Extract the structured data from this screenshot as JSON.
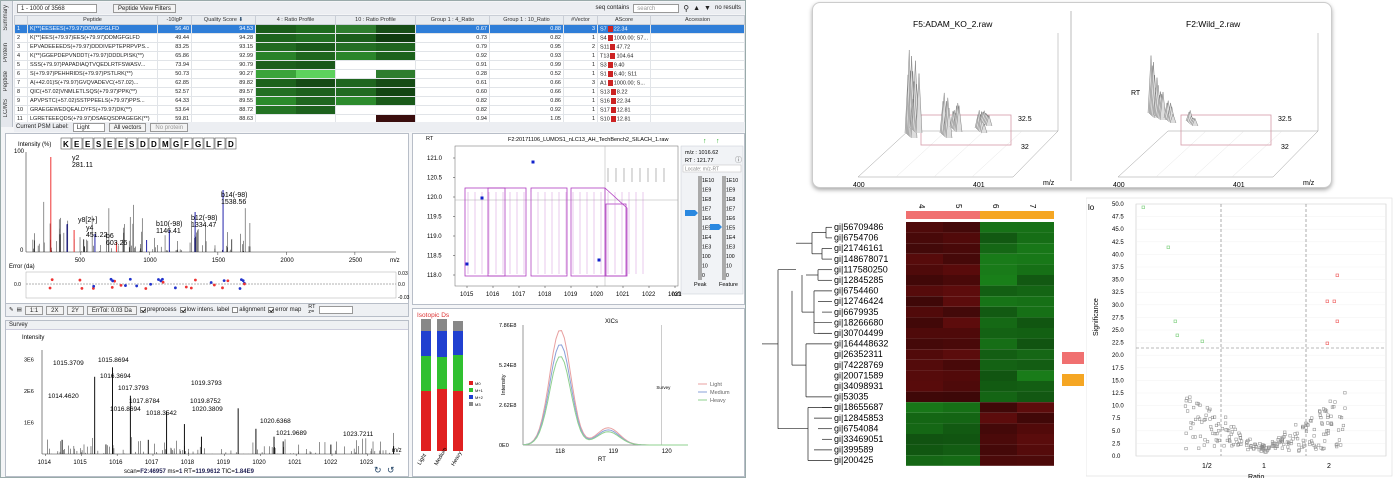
{
  "toolbar": {
    "range": "1 - 1000 of 3568",
    "view_filters": "Peptide View Filters",
    "seq_contains": "seq contains",
    "search_placeholder": "search",
    "no_results": "no results"
  },
  "side_tabs": [
    "Summary",
    "Protein",
    "Peptide",
    "LC/MS"
  ],
  "peptide_table": {
    "columns": [
      "",
      "Peptide",
      "-10lgP",
      "Quality Score",
      "4 : Ratio Profile",
      "10 : Ratio Profile",
      "Group 1 : 4_Ratio",
      "Group 1 : 10_Ratio",
      "#Vector",
      "AScore",
      "Accession"
    ],
    "rows": [
      {
        "n": "1",
        "pep": "K(**)EESEES(+79.97)DDMGFGLFD",
        "lgp": "56.40",
        "qs": "94.53",
        "r4": "0.67",
        "r10": "0.88",
        "vec": "3",
        "as": "S7",
        "asv": "22.34",
        "rp4": [
          "#1a5c1a",
          "#1e6b1e"
        ],
        "rp10": [
          "#2e7d2e",
          "#174d17"
        ]
      },
      {
        "n": "2",
        "pep": "K(**)EES(+79.97)EES(+79.97)DDMGFGLFD",
        "lgp": "49.44",
        "qs": "94.28",
        "r4": "0.73",
        "r10": "0.82",
        "vec": "1",
        "as": "S4",
        "asv": "1000.00; S7...",
        "rp4": [
          "#1d641d",
          "#226f22"
        ],
        "rp10": [
          "#1b5e1b",
          "#0f3b0f"
        ]
      },
      {
        "n": "3",
        "pep": "EPVADEEEEDS(+79.97)DDDIVEPTEPRPVPS...",
        "lgp": "83.25",
        "qs": "93.15",
        "r4": "0.79",
        "r10": "0.95",
        "vec": "2",
        "as": "S11",
        "asv": "47.72",
        "rp4": [
          "#216b21",
          "#1a5a1a"
        ],
        "rp10": [
          "#246f24",
          "#1f651f"
        ]
      },
      {
        "n": "4",
        "pep": "K(**)GGEPDEPVNDDT(+79.97)DDDLPISK(**)",
        "lgp": "65.86",
        "qs": "92.99",
        "r4": "0.92",
        "r10": "0.93",
        "vec": "1",
        "as": "T13",
        "asv": "104.64",
        "rp4": [
          "#298229",
          "#1e661e"
        ],
        "rp10": [
          "#2a852a",
          "#1c621c"
        ]
      },
      {
        "n": "5",
        "pep": "SSS(+79.97)PAPADIAQTVQEDLRTFSWASV...",
        "lgp": "73.94",
        "qs": "90.79",
        "r4": "0.91",
        "r10": "0.99",
        "vec": "1",
        "as": "S3",
        "asv": "9.40",
        "rp4": [
          "#1c5f1c",
          "#1a581a"
        ],
        "rp10": [
          "#ffffff",
          "#ffffff"
        ]
      },
      {
        "n": "6",
        "pep": "S(+79.97)PEHHRIDS(+79.97)PSTLRK(**)",
        "lgp": "50.73",
        "qs": "90.27",
        "r4": "0.28",
        "r10": "0.52",
        "vec": "1",
        "as": "S1",
        "asv": "6.40; S11",
        "rp4": [
          "#3aa33a",
          "#5dd15d"
        ],
        "rp10": [
          "#ffffff",
          "#2e7d2e"
        ]
      },
      {
        "n": "7",
        "pep": "A(+42.01)S(+79.97)GVQVADEVC(+57.02)...",
        "lgp": "62.85",
        "qs": "89.82",
        "r4": "0.61",
        "r10": "0.66",
        "vec": "3",
        "as": "A1",
        "asv": "1000.00; S...",
        "rp4": [
          "#1c621c",
          "#154b15"
        ],
        "rp10": [
          "#1f661f",
          "#164c16"
        ]
      },
      {
        "n": "8",
        "pep": "QIC(+57.02)VNMLETLSQS(+79.97)PPK(**)",
        "lgp": "52.57",
        "qs": "89.57",
        "r4": "0.60",
        "r10": "0.66",
        "vec": "1",
        "as": "S13",
        "asv": "8.22",
        "rp4": [
          "#236f23",
          "#1d611d"
        ],
        "rp10": [
          "#216b21",
          "#134613"
        ]
      },
      {
        "n": "9",
        "pep": "APVPSTC(+57.02)SSTPPEELS(+79.97)PPS...",
        "lgp": "64.33",
        "qs": "89.55",
        "r4": "0.82",
        "r10": "0.86",
        "vec": "1",
        "as": "S16",
        "asv": "22.34",
        "rp4": [
          "#2b8a2b",
          "#1f671f"
        ],
        "rp10": [
          "#2d8b2d",
          "#1a5a1a"
        ]
      },
      {
        "n": "10",
        "pep": "GRAEGEWEDQEALDYFS(+79.97)DK(**)",
        "lgp": "53.64",
        "qs": "88.72",
        "r4": "0.82",
        "r10": "0.92",
        "vec": "1",
        "as": "S17",
        "asv": "12.81",
        "rp4": [
          "#247324",
          "#1d611d"
        ],
        "rp10": [
          "#ffffff",
          "#ffffff"
        ]
      },
      {
        "n": "11",
        "pep": "LGRETEEEQDS(+79.97)DSAEQSDPAGEGK(**)",
        "lgp": "59.81",
        "qs": "88.63",
        "r4": "0.94",
        "r10": "1.05",
        "vec": "1",
        "as": "S10",
        "asv": "12.81",
        "rp4": [
          "#ffffff",
          "#ffffff"
        ],
        "rp10": [
          "#ffffff",
          "#3a0d0d"
        ]
      }
    ]
  },
  "psm_bar": {
    "label": "Current PSM Label:",
    "value": "Light",
    "all_vectors": "All vectors",
    "no_protein": "No protein"
  },
  "spectrum": {
    "sequence": [
      "K",
      "E",
      "E",
      "S",
      "E",
      "E",
      "S",
      "D",
      "D",
      "M",
      "G",
      "F",
      "G",
      "L",
      "F",
      "D"
    ],
    "ylabel": "Intensity (%)",
    "y100": "100",
    "y0": "0",
    "x_ticks": [
      "500",
      "1000",
      "1500",
      "2000",
      "2500"
    ],
    "mz": "m/z",
    "labels": [
      {
        "t": "y2",
        "t2": "281.11"
      },
      {
        "t": "y8[2+]"
      },
      {
        "t": "y4",
        "t2": "451.22"
      },
      {
        "t": "b6",
        "t2": "603.26"
      },
      {
        "t": "b10(-98)",
        "t2": "1146.41"
      },
      {
        "t": "b12(-98)",
        "t2": "1334.47"
      },
      {
        "t": "b14(-98)",
        "t2": "1538.56"
      }
    ],
    "error_label": "Error (da)",
    "err_ticks": [
      "0.03",
      "0.0",
      "-0.03"
    ]
  },
  "spec_toolbar": {
    "one": "1:1",
    "two": "2X",
    "three": "2Y",
    "errtol": "ErrTol: 0.03 Da",
    "preprocess": "preprocess",
    "low": "low intens. label",
    "alignment": "alignment",
    "error_map": "error map",
    "rt": "RT",
    "z": "z="
  },
  "survey": {
    "tab": "Survey",
    "ylabel": "Intensity",
    "y_ticks": [
      "3E6",
      "2E6",
      "1E6"
    ],
    "peaks": [
      "1014.4620",
      "1015.3709",
      "1015.8694",
      "1016.3694",
      "1016.8694",
      "1017.3793",
      "1017.8784",
      "1018.3542",
      "1019.3793",
      "1019.8752",
      "1020.3809",
      "1020.6368",
      "1021.9689",
      "1023.7211"
    ],
    "x_ticks": [
      "1014",
      "1015",
      "1016",
      "1017",
      "1018",
      "1019",
      "1020",
      "1021",
      "1022",
      "1023"
    ],
    "mz": "m/z",
    "footer_scan": "F2:46957",
    "footer_ms": "1",
    "footer_rt": "119.9612",
    "footer_tic": "1.84E9"
  },
  "map": {
    "title": "F2:20171106_LUMOS1_nLC13_AH_TechBench2_SILACH_1.raw",
    "rt": "RT",
    "y_ticks": [
      "121.0",
      "120.5",
      "120.0",
      "119.5",
      "119.0",
      "118.5",
      "118.0"
    ],
    "x_ticks": [
      "1015",
      "1016",
      "1017",
      "1018",
      "1019",
      "1020",
      "1021",
      "1022",
      "1023"
    ],
    "mz": "m/z",
    "mz_readout": "m/z : 1016.62",
    "rt_readout": "RT : 121.77",
    "locate": "Locate: m/z-RT",
    "peak_scale": [
      "1E10",
      "1E9",
      "1E8",
      "1E7",
      "1E6",
      "1E5",
      "1E4",
      "1E3",
      "100",
      "10",
      "0"
    ],
    "feat_scale": [
      "1E10",
      "1E9",
      "1E8",
      "1E7",
      "1E6",
      "1E5",
      "1E4",
      "1E3",
      "100",
      "10",
      "0"
    ],
    "peak": "Peak",
    "feature": "Feature"
  },
  "isotopic": {
    "title": "Isotopic Ds",
    "cats": [
      "Light",
      "Medium",
      "Heavy"
    ],
    "legend": [
      "M0",
      "M+1",
      "M+2",
      "M3"
    ]
  },
  "xic": {
    "title": "XICs",
    "y_ticks": [
      "7.86E8",
      "5.24E8",
      "2.62E8",
      "0E0"
    ],
    "x_ticks": [
      "118",
      "119",
      "120"
    ],
    "xlabel": "RT",
    "ylabel": "Intensity",
    "survey": "Survey",
    "legend": [
      "Light",
      "Medium",
      "Heavy"
    ],
    "colors": [
      "#e8a0a0",
      "#8aa0d8",
      "#8fd08f"
    ]
  },
  "xic3d": {
    "left_title": "F5:ADAM_KO_2.raw",
    "right_title": "F2:Wild_2.raw",
    "rt": "RT",
    "z1": "32.5",
    "z2": "32",
    "x1": "400",
    "x2": "401",
    "mz": "m/z"
  },
  "heatmap": {
    "columns": [
      "4",
      "5",
      "6",
      "7"
    ],
    "rows": [
      "gi|56709486",
      "gi|6754706",
      "gi|21746161",
      "gi|148678071",
      "gi|117580250",
      "gi|12845285",
      "gi|6754460",
      "gi|12746424",
      "gi|6679935",
      "gi|18266680",
      "gi|30704499",
      "gi|164448632",
      "gi|26352311",
      "gi|74228769",
      "gi|20071589",
      "gi|34098931",
      "gi|53035",
      "gi|18655687",
      "gi|12845853",
      "gi|6754084",
      "gi|33469051",
      "gi|399589",
      "gi|200425"
    ],
    "group_colors": [
      "#f07070",
      "#f5a623"
    ]
  },
  "volcano": {
    "ylabel": "Significance",
    "y_ticks": [
      "50.0",
      "47.5",
      "45.0",
      "42.5",
      "40.0",
      "37.5",
      "35.0",
      "32.5",
      "30.0",
      "27.5",
      "25.0",
      "22.5",
      "20.0",
      "17.5",
      "15.0",
      "12.5",
      "10.0",
      "7.5",
      "5.0",
      "2.5",
      "0.0"
    ],
    "x_ticks": [
      "1/2",
      "1",
      "2"
    ],
    "xlabel": "Ratio",
    "corner": "lo"
  }
}
